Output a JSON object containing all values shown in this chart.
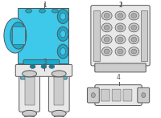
{
  "bg_color": "#ffffff",
  "blue_light": "#3ec8ea",
  "blue_mid": "#1da8cc",
  "blue_dark": "#0e7fa0",
  "outline": "#555555",
  "gray_light": "#e8e8e8",
  "gray_mid": "#cccccc",
  "gray_dark": "#aaaaaa",
  "label_fontsize": 5.5,
  "fig_width": 2.0,
  "fig_height": 1.47,
  "dpi": 100
}
